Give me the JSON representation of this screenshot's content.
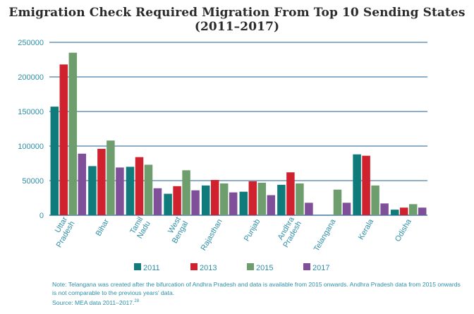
{
  "chart_data": {
    "type": "bar",
    "title": "Emigration Check Required Migration From Top 10 Sending States (2011–2017)",
    "categories": [
      "Uttar Pradesh",
      "Bihar",
      "Tamil Nadu",
      "West Bengal",
      "Rajasthan",
      "Punjab",
      "Andhra Pradesh",
      "Telangana",
      "Kerala",
      "Odisha"
    ],
    "category_lines": [
      [
        "Uttar",
        "Pradesh"
      ],
      [
        "Bihar"
      ],
      [
        "Tamil",
        "Nadu"
      ],
      [
        "West",
        "Bengal"
      ],
      [
        "Rajasthan"
      ],
      [
        "Punjab"
      ],
      [
        "Andhra",
        "Pradesh"
      ],
      [
        "Telangana"
      ],
      [
        "Kerala"
      ],
      [
        "Odisha"
      ]
    ],
    "series": [
      {
        "name": "2011",
        "color": "#0f7b7b",
        "values": [
          157000,
          71000,
          70000,
          31000,
          43000,
          34000,
          44000,
          null,
          88000,
          8000
        ]
      },
      {
        "name": "2013",
        "color": "#d0222e",
        "values": [
          218000,
          96000,
          84000,
          42000,
          51000,
          49000,
          62000,
          null,
          86000,
          11000
        ]
      },
      {
        "name": "2015",
        "color": "#6e9e6e",
        "values": [
          235000,
          108000,
          73000,
          65000,
          46000,
          47000,
          46000,
          37000,
          43000,
          16000
        ]
      },
      {
        "name": "2017",
        "color": "#7f4f9a",
        "values": [
          89000,
          69000,
          39000,
          36000,
          33000,
          29000,
          18000,
          18000,
          17000,
          11000
        ]
      }
    ],
    "ylim": [
      0,
      250000
    ],
    "yticks": [
      0,
      50000,
      100000,
      150000,
      200000,
      250000
    ],
    "grid": true,
    "legend_position": "bottom",
    "xlabel": "",
    "ylabel": "",
    "colors": {
      "grid": "#1f5c94",
      "axis_text": "#2f8fa8"
    }
  },
  "footer": {
    "note": "Note: Telangana was created after the bifurcation of Andhra Pradesh and data is available from 2015 onwards. Andhra Pradesh data from 2015 onwards is not comparable to the previous years' data.",
    "source": "Source: MEA data 2011–2017.",
    "source_ref": "28"
  }
}
